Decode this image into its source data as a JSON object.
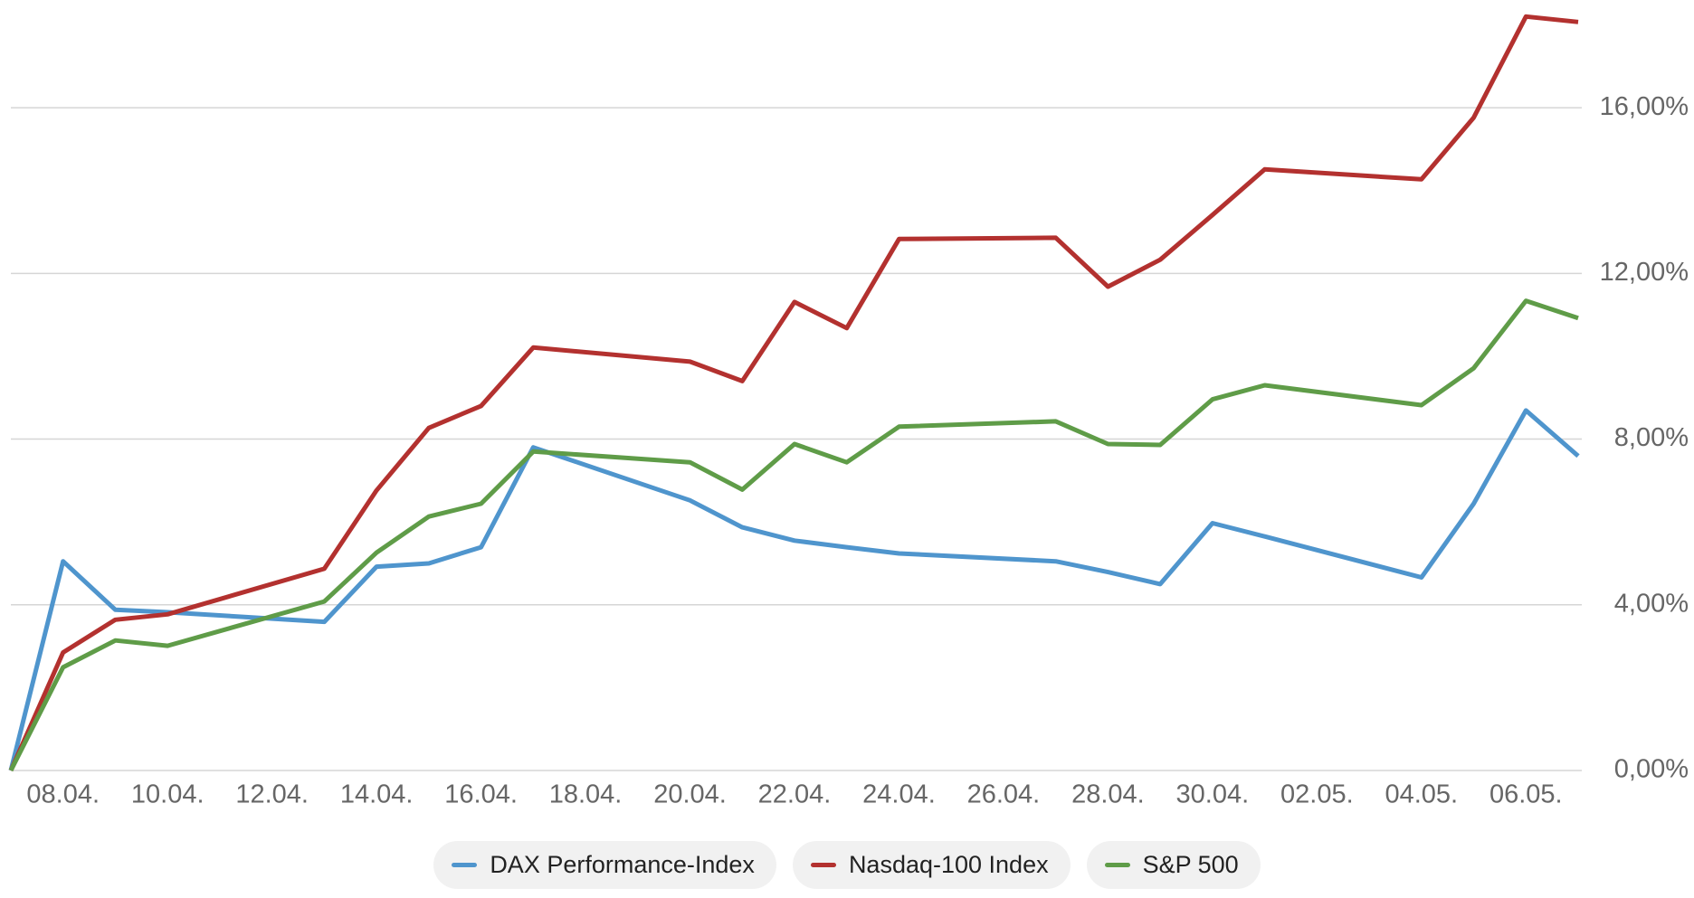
{
  "chart_data": {
    "type": "line",
    "x": [
      "07.04.",
      "08.04.",
      "09.04.",
      "10.04.",
      "13.04.",
      "14.04.",
      "15.04.",
      "16.04.",
      "17.04.",
      "20.04.",
      "21.04.",
      "22.04.",
      "23.04.",
      "24.04.",
      "27.04.",
      "28.04.",
      "29.04.",
      "30.04.",
      "01.05.",
      "04.05.",
      "05.05.",
      "06.05.",
      "07.05."
    ],
    "series": [
      {
        "name": "DAX Performance-Index",
        "color": "#4f95cd",
        "values": [
          0,
          5.05,
          3.88,
          3.82,
          3.59,
          4.92,
          5.0,
          5.39,
          7.8,
          6.52,
          5.87,
          5.55,
          5.39,
          5.24,
          5.05,
          4.79,
          4.5,
          5.97,
          5.65,
          4.66,
          6.44,
          8.69,
          7.59
        ]
      },
      {
        "name": "Nasdaq-100 Index",
        "color": "#b3312f",
        "values": [
          0,
          2.85,
          3.64,
          3.77,
          4.87,
          6.76,
          8.27,
          8.8,
          10.21,
          9.87,
          9.4,
          11.31,
          10.68,
          12.83,
          12.86,
          11.68,
          12.33,
          13.41,
          14.51,
          14.27,
          15.76,
          18.2,
          18.07
        ]
      },
      {
        "name": "S&P 500",
        "color": "#5f9c48",
        "values": [
          0,
          2.49,
          3.14,
          3.01,
          4.08,
          5.26,
          6.13,
          6.44,
          7.7,
          7.44,
          6.78,
          7.88,
          7.44,
          8.3,
          8.43,
          7.88,
          7.86,
          8.96,
          9.3,
          8.82,
          9.71,
          11.34,
          10.92
        ]
      }
    ],
    "xlim": [
      "07.04.",
      "07.05."
    ],
    "xticks": [
      "08.04.",
      "10.04.",
      "12.04.",
      "14.04.",
      "16.04.",
      "18.04.",
      "20.04.",
      "22.04.",
      "24.04.",
      "26.04.",
      "28.04.",
      "30.04.",
      "02.05.",
      "04.05.",
      "06.05."
    ],
    "ylim": [
      0,
      18.6
    ],
    "yticks": [
      {
        "value": 0,
        "label": "0,00%"
      },
      {
        "value": 4,
        "label": "4,00%"
      },
      {
        "value": 8,
        "label": "8,00%"
      },
      {
        "value": 12,
        "label": "12,00%"
      },
      {
        "value": 16,
        "label": "16,00%"
      }
    ],
    "grid": true
  }
}
